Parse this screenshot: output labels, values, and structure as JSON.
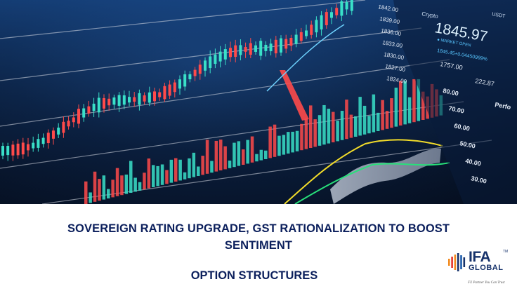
{
  "hero": {
    "price_label": "Crypto",
    "price_value": "1845.97",
    "currency": "USDT",
    "market_status": "MARKET OPEN",
    "change_text": "1845.45+0.04450999%",
    "side_values": [
      "1757.00",
      "222.87"
    ],
    "side_label": "Perfo",
    "price_axis": [
      "1842.00",
      "1839.00",
      "1836.00",
      "1833.00",
      "1830.00",
      "1827.00",
      "1824.00"
    ],
    "volume_axis": [
      "80.00",
      "70.00",
      "60.00",
      "50.00",
      "40.00",
      "30.00"
    ],
    "colors": {
      "bull": "#39e0c8",
      "bear": "#ff4a4a",
      "line": "#d8dde6",
      "accent_yellow": "#f2dc2a",
      "accent_green": "#28e07a"
    }
  },
  "headline": {
    "line1": "SOVEREIGN RATING UPGRADE, GST RATIONALIZATION TO BOOST",
    "line2": "SENTIMENT"
  },
  "subtitle": "OPTION STRUCTURES",
  "logo": {
    "name": "IFA",
    "tm": "TM",
    "sub": "GLOBAL",
    "tagline": "FX Partner You Can Trust"
  }
}
